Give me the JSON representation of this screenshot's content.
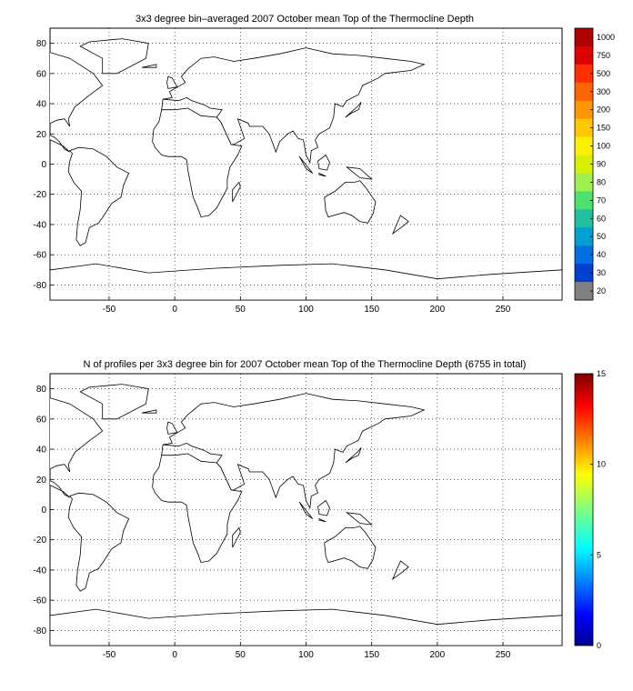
{
  "chart_data": [
    {
      "type": "heatmap",
      "title": "3x3 degree bin–averaged 2007 October mean Top of the Thermocline Depth",
      "xlim": [
        -95,
        295
      ],
      "ylim": [
        -90,
        90
      ],
      "xticks": [
        "-50",
        "0",
        "50",
        "100",
        "150",
        "200",
        "250"
      ],
      "yticks": [
        "80",
        "60",
        "40",
        "20",
        "0",
        "-20",
        "-40",
        "-60",
        "-80"
      ],
      "grid": true,
      "colorbar": {
        "position": "right",
        "labels": [
          "1000",
          "750",
          "500",
          "300",
          "200",
          "150",
          "100",
          "90",
          "80",
          "70",
          "60",
          "50",
          "40",
          "30",
          "20"
        ],
        "colors": [
          "#b00000",
          "#e00000",
          "#ff3000",
          "#ff6400",
          "#ff9600",
          "#ffc800",
          "#fff000",
          "#d8f000",
          "#a0f050",
          "#50e070",
          "#20c0a0",
          "#00a0d0",
          "#0070e0",
          "#0040d0",
          "#808080"
        ]
      },
      "points": []
    },
    {
      "type": "heatmap",
      "title": "N of profiles per 3x3 degree bin for 2007 October mean Top of the Thermocline Depth  (6755 in total)",
      "xlim": [
        -95,
        295
      ],
      "ylim": [
        -90,
        90
      ],
      "xticks": [
        "-50",
        "0",
        "50",
        "100",
        "150",
        "200",
        "250"
      ],
      "yticks": [
        "80",
        "60",
        "40",
        "20",
        "0",
        "-20",
        "-40",
        "-60",
        "-80"
      ],
      "grid": true,
      "colorbar": {
        "position": "right",
        "range": [
          0,
          15
        ],
        "labels": [
          "15",
          "10",
          "5",
          "0"
        ],
        "colormap": "jet"
      },
      "points": []
    }
  ]
}
